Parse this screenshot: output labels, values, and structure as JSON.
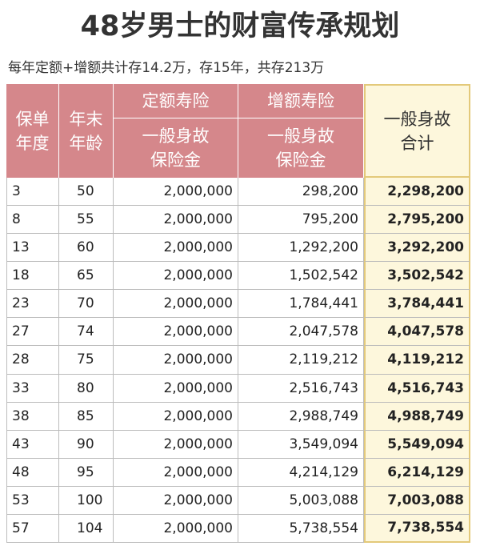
{
  "title": "48岁男士的财富传承规划",
  "subtitle": "每年定额+增额共计存14.2万，存15年，共存213万",
  "table": {
    "columns": [
      {
        "lines": [
          "保单",
          "年度"
        ]
      },
      {
        "lines": [
          "年末",
          "年龄"
        ]
      },
      {
        "top": "定额寿险",
        "lines": [
          "一般身故",
          "保险金"
        ]
      },
      {
        "top": "增额寿险",
        "lines": [
          "一般身故",
          "保险金"
        ]
      },
      {
        "lines": [
          "一般身故",
          "合计"
        ]
      }
    ],
    "rows": [
      [
        "3",
        "50",
        "2,000,000",
        "298,200",
        "2,298,200"
      ],
      [
        "8",
        "55",
        "2,000,000",
        "795,200",
        "2,795,200"
      ],
      [
        "13",
        "60",
        "2,000,000",
        "1,292,200",
        "3,292,200"
      ],
      [
        "18",
        "65",
        "2,000,000",
        "1,502,542",
        "3,502,542"
      ],
      [
        "23",
        "70",
        "2,000,000",
        "1,784,441",
        "3,784,441"
      ],
      [
        "27",
        "74",
        "2,000,000",
        "2,047,578",
        "4,047,578"
      ],
      [
        "28",
        "75",
        "2,000,000",
        "2,119,212",
        "4,119,212"
      ],
      [
        "33",
        "80",
        "2,000,000",
        "2,516,743",
        "4,516,743"
      ],
      [
        "38",
        "85",
        "2,000,000",
        "2,988,749",
        "4,988,749"
      ],
      [
        "43",
        "90",
        "2,000,000",
        "3,549,094",
        "5,549,094"
      ],
      [
        "48",
        "95",
        "2,000,000",
        "4,214,129",
        "6,214,129"
      ],
      [
        "53",
        "100",
        "2,000,000",
        "5,003,088",
        "7,003,088"
      ],
      [
        "57",
        "104",
        "2,000,000",
        "5,738,554",
        "7,738,554"
      ]
    ]
  }
}
